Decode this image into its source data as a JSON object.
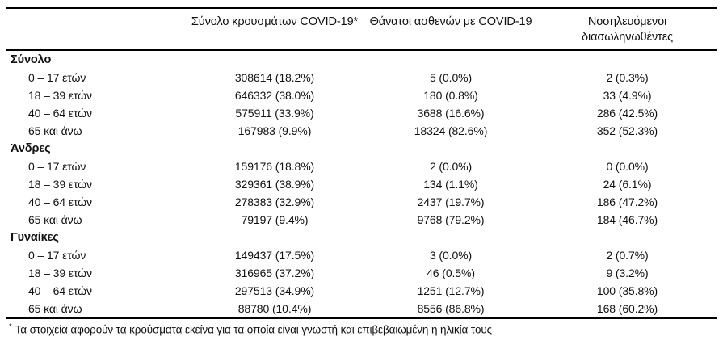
{
  "header": {
    "col_cases": "Σύνολο κρουσμάτων COVID-19*",
    "col_deaths": "Θάνατοι ασθενών με COVID-19",
    "col_intubated": "Νοσηλευόμενοι διασωληνωθέντες"
  },
  "sections": [
    {
      "label": "Σύνολο",
      "rows": [
        {
          "label": "0 – 17 ετών",
          "cases": "308614 (18.2%)",
          "deaths": "5 (0.0%)",
          "intubated": "2 (0.3%)"
        },
        {
          "label": "18 – 39 ετών",
          "cases": "646332 (38.0%)",
          "deaths": "180 (0.8%)",
          "intubated": "33 (4.9%)"
        },
        {
          "label": "40 – 64 ετών",
          "cases": "575911 (33.9%)",
          "deaths": "3688 (16.6%)",
          "intubated": "286 (42.5%)"
        },
        {
          "label": "65 και άνω",
          "cases": "167983 (9.9%)",
          "deaths": "18324 (82.6%)",
          "intubated": "352 (52.3%)"
        }
      ]
    },
    {
      "label": "Άνδρες",
      "rows": [
        {
          "label": "0 – 17 ετών",
          "cases": "159176 (18.8%)",
          "deaths": "2 (0.0%)",
          "intubated": "0 (0.0%)"
        },
        {
          "label": "18 – 39 ετών",
          "cases": "329361 (38.9%)",
          "deaths": "134 (1.1%)",
          "intubated": "24 (6.1%)"
        },
        {
          "label": "40 – 64 ετών",
          "cases": "278383 (32.9%)",
          "deaths": "2437 (19.7%)",
          "intubated": "186 (47.2%)"
        },
        {
          "label": "65 και άνω",
          "cases": "79197 (9.4%)",
          "deaths": "9768 (79.2%)",
          "intubated": "184 (46.7%)"
        }
      ]
    },
    {
      "label": "Γυναίκες",
      "rows": [
        {
          "label": "0 – 17 ετών",
          "cases": "149437 (17.5%)",
          "deaths": "3 (0.0%)",
          "intubated": "2 (0.7%)"
        },
        {
          "label": "18 – 39 ετών",
          "cases": "316965 (37.2%)",
          "deaths": "46 (0.5%)",
          "intubated": "9 (3.2%)"
        },
        {
          "label": "40 – 64 ετών",
          "cases": "297513 (34.9%)",
          "deaths": "1251 (12.7%)",
          "intubated": "100 (35.8%)"
        },
        {
          "label": "65 και άνω",
          "cases": "88780 (10.4%)",
          "deaths": "8556 (86.8%)",
          "intubated": "168 (60.2%)"
        }
      ]
    }
  ],
  "footnote": {
    "marker": "*",
    "text": "Τα στοιχεία αφορούν τα κρούσματα εκείνα για τα οποία είναι γνωστή και επιβεβαιωμένη η ηλικία τους"
  },
  "colors": {
    "background": "#ffffff",
    "text": "#111111",
    "rule": "#000000"
  }
}
